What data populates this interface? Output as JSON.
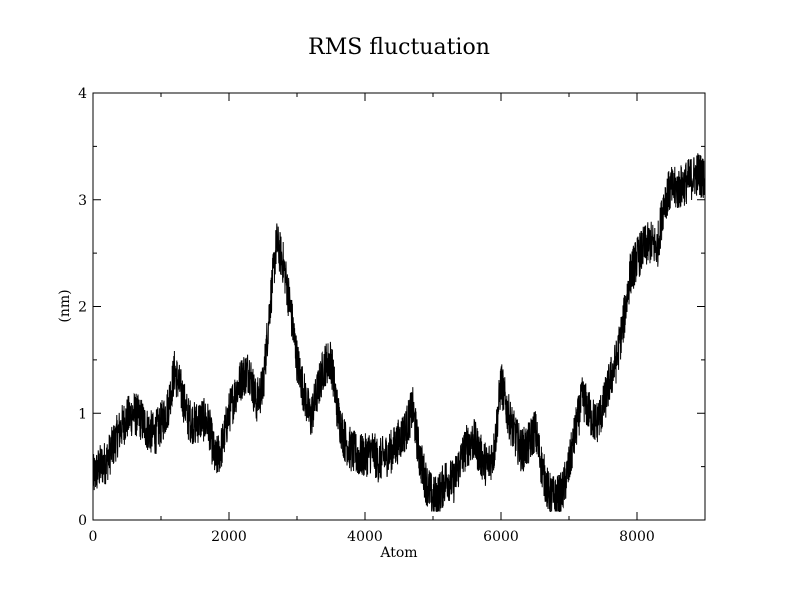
{
  "chart_data": {
    "type": "line",
    "title": "RMS fluctuation",
    "xlabel": "Atom",
    "ylabel": "(nm)",
    "xlim": [
      0,
      9000
    ],
    "ylim": [
      0,
      4
    ],
    "x_major_ticks": [
      0,
      2000,
      4000,
      6000,
      8000
    ],
    "x_tick_labels": [
      "0",
      "2000",
      "4000",
      "6000",
      "8000"
    ],
    "x_minor_step": 1000,
    "y_major_ticks": [
      0,
      1,
      2,
      3,
      4
    ],
    "y_tick_labels": [
      "0",
      "1",
      "2",
      "3",
      "4"
    ],
    "y_minor_step": 0.5,
    "grid": false,
    "legend": "none",
    "line_color": "#000000",
    "series": [
      {
        "x": [
          0,
          100,
          200,
          300,
          400,
          500,
          600,
          700,
          800,
          900,
          1000,
          1100,
          1200,
          1300,
          1400,
          1500,
          1600,
          1700,
          1800,
          1900,
          2000,
          2100,
          2200,
          2300,
          2400,
          2500,
          2600,
          2700,
          2800,
          2900,
          3000,
          3100,
          3200,
          3300,
          3400,
          3500,
          3600,
          3700,
          3800,
          3900,
          4000,
          4100,
          4200,
          4300,
          4400,
          4500,
          4600,
          4700,
          4800,
          4900,
          5000,
          5100,
          5200,
          5300,
          5400,
          5500,
          5600,
          5700,
          5800,
          5900,
          6000,
          6100,
          6200,
          6300,
          6400,
          6500,
          6600,
          6700,
          6800,
          6900,
          7000,
          7100,
          7200,
          7300,
          7400,
          7500,
          7600,
          7700,
          7800,
          7900,
          8000,
          8100,
          8200,
          8300,
          8400,
          8500,
          8600,
          8700,
          8800,
          8900,
          8990
        ],
        "y": [
          0.4,
          0.5,
          0.55,
          0.7,
          0.85,
          0.95,
          1.0,
          0.95,
          0.85,
          0.8,
          0.9,
          1.05,
          1.4,
          1.2,
          0.95,
          0.9,
          0.95,
          0.9,
          0.55,
          0.7,
          1.0,
          1.2,
          1.35,
          1.4,
          1.1,
          1.25,
          2.0,
          2.6,
          2.4,
          2.0,
          1.5,
          1.2,
          0.95,
          1.2,
          1.45,
          1.5,
          1.0,
          0.75,
          0.65,
          0.6,
          0.6,
          0.65,
          0.55,
          0.6,
          0.65,
          0.75,
          0.85,
          1.05,
          0.6,
          0.35,
          0.2,
          0.25,
          0.4,
          0.35,
          0.55,
          0.7,
          0.75,
          0.6,
          0.5,
          0.65,
          1.3,
          1.0,
          0.8,
          0.65,
          0.7,
          0.85,
          0.5,
          0.25,
          0.2,
          0.25,
          0.5,
          0.85,
          1.15,
          1.0,
          0.9,
          1.05,
          1.3,
          1.5,
          1.85,
          2.3,
          2.45,
          2.55,
          2.6,
          2.55,
          3.0,
          3.1,
          3.1,
          3.15,
          3.2,
          3.25,
          3.2
        ]
      }
    ]
  }
}
